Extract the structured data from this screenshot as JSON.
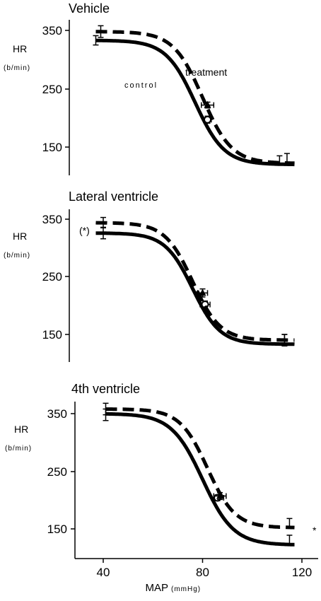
{
  "chart_data": [
    {
      "type": "line",
      "title": "Vehicle",
      "ylabel": "HR",
      "ylabel_unit": "(b/min)",
      "ylim": [
        95,
        365
      ],
      "yticks": [
        "350",
        "250",
        "150"
      ],
      "yticks_values": [
        350,
        250,
        150
      ],
      "annotations": [
        "treatment",
        "control"
      ],
      "series": [
        {
          "name": "control",
          "style": "solid",
          "curve": {
            "top": 333,
            "bottom": 120,
            "mid": 77,
            "slope": 0.17
          },
          "points": [
            {
              "x": 37,
              "y": 333,
              "xerr": 0,
              "yerr": 8
            },
            {
              "x": 82,
              "y": 197,
              "xerr": 1.5,
              "yerr": 6
            },
            {
              "x": 111,
              "y": 127,
              "xerr": 0,
              "yerr": 8
            }
          ]
        },
        {
          "name": "treatment",
          "style": "dashed",
          "curve": {
            "top": 348,
            "bottom": 122,
            "mid": 80,
            "slope": 0.17
          },
          "points": [
            {
              "x": 39,
              "y": 348,
              "xerr": 0,
              "yerr": 10
            },
            {
              "x": 82,
              "y": 222,
              "xerr": 2.5,
              "yerr": 5
            },
            {
              "x": 114,
              "y": 130,
              "xerr": 0,
              "yerr": 9
            }
          ]
        }
      ]
    },
    {
      "type": "line",
      "title": "Lateral ventricle",
      "ylabel": "HR",
      "ylabel_unit": "(b/min)",
      "ylim": [
        100,
        375
      ],
      "yticks": [
        "350",
        "250",
        "150"
      ],
      "yticks_values": [
        350,
        250,
        150
      ],
      "annotations": [
        "(*)"
      ],
      "series": [
        {
          "name": "control",
          "style": "solid",
          "curve": {
            "top": 326,
            "bottom": 133,
            "mid": 76,
            "slope": 0.18
          },
          "points": [
            {
              "x": 40,
              "y": 326,
              "xerr": 0,
              "yerr": 10
            },
            {
              "x": 81,
              "y": 202,
              "xerr": 2,
              "yerr": 6
            },
            {
              "x": 113,
              "y": 140,
              "xerr": 0,
              "yerr": 10
            }
          ]
        },
        {
          "name": "treatment",
          "style": "dashed",
          "curve": {
            "top": 344,
            "bottom": 140,
            "mid": 76,
            "slope": 0.18
          },
          "points": [
            {
              "x": 40,
              "y": 344,
              "xerr": 0,
              "yerr": 9
            },
            {
              "x": 80,
              "y": 222,
              "xerr": 2,
              "yerr": 7
            },
            {
              "x": 113,
              "y": 142,
              "xerr": 0,
              "yerr": 8
            }
          ]
        }
      ]
    },
    {
      "type": "line",
      "title": "4th ventricle",
      "ylabel": "HR",
      "ylabel_unit": "(b/min)",
      "ylim": [
        110,
        375
      ],
      "yticks": [
        "350",
        "250",
        "150"
      ],
      "yticks_values": [
        350,
        250,
        150
      ],
      "xlim": [
        32,
        123
      ],
      "xticks": [
        "40",
        "80",
        "120"
      ],
      "xticks_values": [
        40,
        80,
        120
      ],
      "xlabel": "MAP",
      "xlabel_unit": "(mmHg)",
      "annotations": [
        "*"
      ],
      "series": [
        {
          "name": "control",
          "style": "solid",
          "curve": {
            "top": 350,
            "bottom": 122,
            "mid": 80,
            "slope": 0.16
          },
          "points": [
            {
              "x": 41,
              "y": 348,
              "xerr": 0,
              "yerr": 10
            },
            {
              "x": 86,
              "y": 204,
              "xerr": 2.5,
              "yerr": 5
            },
            {
              "x": 115,
              "y": 131,
              "xerr": 0,
              "yerr": 8
            }
          ]
        },
        {
          "name": "treatment",
          "style": "dashed",
          "curve": {
            "top": 358,
            "bottom": 152,
            "mid": 82,
            "slope": 0.18
          },
          "points": [
            {
              "x": 41,
              "y": 358,
              "xerr": 0,
              "yerr": 10
            },
            {
              "x": 87,
              "y": 207,
              "xerr": 2.5,
              "yerr": 6
            },
            {
              "x": 115,
              "y": 160,
              "xerr": 0,
              "yerr": 8
            }
          ]
        }
      ]
    }
  ]
}
